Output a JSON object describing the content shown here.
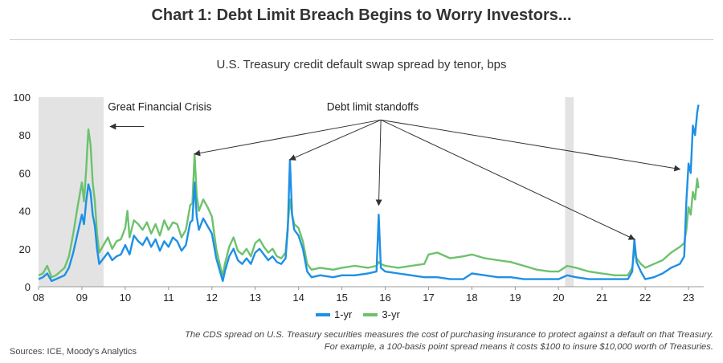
{
  "title": "Chart 1: Debt Limit Breach Begins to Worry Investors...",
  "subtitle": "U.S. Treasury credit default swap spread by tenor, bps",
  "note": "The CDS spread on U.S. Treasury securities measures the cost of purchasing insurance to protect against a default on that Treasury. For example, a 100-basis point spread means it costs $100 to insure $10,000 worth of Treasuries.",
  "source": "Sources: ICE, Moody's Analytics",
  "colors": {
    "one_yr": "#1e90e6",
    "three_yr": "#6cc26c",
    "shade": "#e3e3e3",
    "axis": "#999999"
  },
  "chart_data": {
    "type": "line",
    "xlim": [
      2008,
      2023.35
    ],
    "ylim": [
      0,
      100
    ],
    "y_ticks": [
      0,
      20,
      40,
      60,
      80,
      100
    ],
    "x_ticks": [
      {
        "x": 2008,
        "label": "08"
      },
      {
        "x": 2009,
        "label": "09"
      },
      {
        "x": 2010,
        "label": "10"
      },
      {
        "x": 2011,
        "label": "11"
      },
      {
        "x": 2012,
        "label": "12"
      },
      {
        "x": 2013,
        "label": "13"
      },
      {
        "x": 2014,
        "label": "14"
      },
      {
        "x": 2015,
        "label": "15"
      },
      {
        "x": 2016,
        "label": "16"
      },
      {
        "x": 2017,
        "label": "17"
      },
      {
        "x": 2018,
        "label": "18"
      },
      {
        "x": 2019,
        "label": "19"
      },
      {
        "x": 2020,
        "label": "20"
      },
      {
        "x": 2021,
        "label": "21"
      },
      {
        "x": 2022,
        "label": "22"
      },
      {
        "x": 2023,
        "label": "23"
      }
    ],
    "shaded_periods": [
      [
        2008,
        2009.5
      ],
      [
        2020.15,
        2020.35
      ]
    ],
    "annotations": {
      "gfc": {
        "text": "Great Financial Crisis",
        "x": 2009.6,
        "y": 93
      },
      "debt_limit": {
        "text": "Debt limit standoffs",
        "x": 2014.65,
        "y": 93,
        "anchor": [
          2015.9,
          88
        ],
        "targets": [
          [
            2011.6,
            70
          ],
          [
            2013.8,
            67
          ],
          [
            2015.85,
            43
          ],
          [
            2021.75,
            25
          ],
          [
            2022.8,
            62
          ]
        ]
      }
    },
    "series": [
      {
        "name": "1-yr",
        "color": "#1e90e6",
        "points": [
          [
            2008.0,
            4
          ],
          [
            2008.1,
            5
          ],
          [
            2008.2,
            7
          ],
          [
            2008.3,
            3
          ],
          [
            2008.4,
            4
          ],
          [
            2008.5,
            5
          ],
          [
            2008.6,
            6
          ],
          [
            2008.7,
            10
          ],
          [
            2008.8,
            18
          ],
          [
            2008.9,
            28
          ],
          [
            2009.0,
            38
          ],
          [
            2009.05,
            33
          ],
          [
            2009.1,
            45
          ],
          [
            2009.15,
            54
          ],
          [
            2009.2,
            50
          ],
          [
            2009.25,
            38
          ],
          [
            2009.3,
            32
          ],
          [
            2009.35,
            20
          ],
          [
            2009.4,
            12
          ],
          [
            2009.5,
            15
          ],
          [
            2009.6,
            18
          ],
          [
            2009.7,
            14
          ],
          [
            2009.8,
            16
          ],
          [
            2009.9,
            17
          ],
          [
            2010.0,
            22
          ],
          [
            2010.1,
            17
          ],
          [
            2010.2,
            27
          ],
          [
            2010.3,
            24
          ],
          [
            2010.4,
            22
          ],
          [
            2010.5,
            26
          ],
          [
            2010.6,
            21
          ],
          [
            2010.7,
            25
          ],
          [
            2010.8,
            19
          ],
          [
            2010.9,
            24
          ],
          [
            2011.0,
            21
          ],
          [
            2011.1,
            26
          ],
          [
            2011.2,
            24
          ],
          [
            2011.3,
            19
          ],
          [
            2011.4,
            22
          ],
          [
            2011.5,
            34
          ],
          [
            2011.55,
            35
          ],
          [
            2011.6,
            55
          ],
          [
            2011.65,
            37
          ],
          [
            2011.7,
            30
          ],
          [
            2011.8,
            36
          ],
          [
            2011.9,
            32
          ],
          [
            2012.0,
            28
          ],
          [
            2012.1,
            15
          ],
          [
            2012.2,
            7
          ],
          [
            2012.25,
            3
          ],
          [
            2012.3,
            8
          ],
          [
            2012.4,
            16
          ],
          [
            2012.5,
            20
          ],
          [
            2012.6,
            14
          ],
          [
            2012.7,
            12
          ],
          [
            2012.8,
            15
          ],
          [
            2012.9,
            12
          ],
          [
            2013.0,
            18
          ],
          [
            2013.1,
            20
          ],
          [
            2013.2,
            17
          ],
          [
            2013.3,
            14
          ],
          [
            2013.4,
            16
          ],
          [
            2013.5,
            13
          ],
          [
            2013.6,
            12
          ],
          [
            2013.7,
            15
          ],
          [
            2013.75,
            30
          ],
          [
            2013.8,
            67
          ],
          [
            2013.85,
            38
          ],
          [
            2013.9,
            30
          ],
          [
            2014.0,
            27
          ],
          [
            2014.1,
            20
          ],
          [
            2014.2,
            8
          ],
          [
            2014.3,
            5
          ],
          [
            2014.5,
            6
          ],
          [
            2014.8,
            5
          ],
          [
            2015.0,
            6
          ],
          [
            2015.3,
            6
          ],
          [
            2015.6,
            7
          ],
          [
            2015.8,
            8
          ],
          [
            2015.85,
            38
          ],
          [
            2015.9,
            10
          ],
          [
            2016.0,
            8
          ],
          [
            2016.3,
            7
          ],
          [
            2016.6,
            6
          ],
          [
            2016.9,
            5
          ],
          [
            2017.2,
            5
          ],
          [
            2017.5,
            4
          ],
          [
            2017.8,
            4
          ],
          [
            2018.0,
            7
          ],
          [
            2018.3,
            6
          ],
          [
            2018.6,
            5
          ],
          [
            2018.9,
            5
          ],
          [
            2019.2,
            4
          ],
          [
            2019.5,
            4
          ],
          [
            2019.8,
            4
          ],
          [
            2020.0,
            4
          ],
          [
            2020.2,
            6
          ],
          [
            2020.4,
            5
          ],
          [
            2020.7,
            4
          ],
          [
            2021.0,
            4
          ],
          [
            2021.3,
            4
          ],
          [
            2021.6,
            4
          ],
          [
            2021.7,
            8
          ],
          [
            2021.75,
            25
          ],
          [
            2021.8,
            13
          ],
          [
            2021.9,
            8
          ],
          [
            2022.0,
            4
          ],
          [
            2022.2,
            5
          ],
          [
            2022.4,
            7
          ],
          [
            2022.6,
            10
          ],
          [
            2022.8,
            12
          ],
          [
            2022.9,
            16
          ],
          [
            2022.95,
            45
          ],
          [
            2023.0,
            65
          ],
          [
            2023.05,
            60
          ],
          [
            2023.1,
            85
          ],
          [
            2023.15,
            80
          ],
          [
            2023.2,
            92
          ],
          [
            2023.23,
            96
          ]
        ]
      },
      {
        "name": "3-yr",
        "color": "#6cc26c",
        "points": [
          [
            2008.0,
            6
          ],
          [
            2008.1,
            7
          ],
          [
            2008.2,
            11
          ],
          [
            2008.3,
            5
          ],
          [
            2008.4,
            6
          ],
          [
            2008.5,
            8
          ],
          [
            2008.6,
            10
          ],
          [
            2008.7,
            16
          ],
          [
            2008.8,
            28
          ],
          [
            2008.9,
            42
          ],
          [
            2009.0,
            55
          ],
          [
            2009.05,
            45
          ],
          [
            2009.1,
            62
          ],
          [
            2009.15,
            83
          ],
          [
            2009.2,
            75
          ],
          [
            2009.25,
            55
          ],
          [
            2009.3,
            45
          ],
          [
            2009.35,
            28
          ],
          [
            2009.4,
            18
          ],
          [
            2009.5,
            22
          ],
          [
            2009.6,
            26
          ],
          [
            2009.7,
            20
          ],
          [
            2009.8,
            24
          ],
          [
            2009.9,
            25
          ],
          [
            2010.0,
            31
          ],
          [
            2010.05,
            40
          ],
          [
            2010.1,
            26
          ],
          [
            2010.2,
            35
          ],
          [
            2010.3,
            33
          ],
          [
            2010.4,
            30
          ],
          [
            2010.5,
            34
          ],
          [
            2010.6,
            28
          ],
          [
            2010.7,
            33
          ],
          [
            2010.8,
            27
          ],
          [
            2010.9,
            35
          ],
          [
            2011.0,
            30
          ],
          [
            2011.1,
            34
          ],
          [
            2011.2,
            33
          ],
          [
            2011.3,
            26
          ],
          [
            2011.4,
            30
          ],
          [
            2011.5,
            43
          ],
          [
            2011.55,
            44
          ],
          [
            2011.6,
            70
          ],
          [
            2011.65,
            48
          ],
          [
            2011.7,
            40
          ],
          [
            2011.8,
            46
          ],
          [
            2011.9,
            42
          ],
          [
            2012.0,
            37
          ],
          [
            2012.1,
            20
          ],
          [
            2012.2,
            10
          ],
          [
            2012.25,
            6
          ],
          [
            2012.3,
            12
          ],
          [
            2012.4,
            21
          ],
          [
            2012.5,
            26
          ],
          [
            2012.6,
            19
          ],
          [
            2012.7,
            17
          ],
          [
            2012.8,
            20
          ],
          [
            2012.9,
            16
          ],
          [
            2013.0,
            23
          ],
          [
            2013.1,
            25
          ],
          [
            2013.2,
            21
          ],
          [
            2013.3,
            18
          ],
          [
            2013.4,
            20
          ],
          [
            2013.5,
            16
          ],
          [
            2013.6,
            15
          ],
          [
            2013.7,
            18
          ],
          [
            2013.75,
            32
          ],
          [
            2013.8,
            46
          ],
          [
            2013.85,
            38
          ],
          [
            2013.9,
            33
          ],
          [
            2014.0,
            31
          ],
          [
            2014.1,
            24
          ],
          [
            2014.2,
            12
          ],
          [
            2014.3,
            9
          ],
          [
            2014.5,
            10
          ],
          [
            2014.8,
            9
          ],
          [
            2015.0,
            10
          ],
          [
            2015.3,
            11
          ],
          [
            2015.6,
            10
          ],
          [
            2015.8,
            11
          ],
          [
            2015.85,
            13
          ],
          [
            2015.9,
            12
          ],
          [
            2016.0,
            11
          ],
          [
            2016.3,
            10
          ],
          [
            2016.6,
            11
          ],
          [
            2016.9,
            12
          ],
          [
            2017.0,
            17
          ],
          [
            2017.2,
            18
          ],
          [
            2017.5,
            15
          ],
          [
            2017.8,
            16
          ],
          [
            2018.0,
            17
          ],
          [
            2018.3,
            15
          ],
          [
            2018.6,
            14
          ],
          [
            2018.9,
            13
          ],
          [
            2019.2,
            11
          ],
          [
            2019.5,
            9
          ],
          [
            2019.8,
            8
          ],
          [
            2020.0,
            8
          ],
          [
            2020.2,
            11
          ],
          [
            2020.4,
            10
          ],
          [
            2020.7,
            8
          ],
          [
            2021.0,
            7
          ],
          [
            2021.3,
            6
          ],
          [
            2021.6,
            6
          ],
          [
            2021.7,
            10
          ],
          [
            2021.75,
            19
          ],
          [
            2021.8,
            15
          ],
          [
            2021.9,
            12
          ],
          [
            2022.0,
            10
          ],
          [
            2022.2,
            12
          ],
          [
            2022.4,
            14
          ],
          [
            2022.6,
            18
          ],
          [
            2022.8,
            21
          ],
          [
            2022.9,
            23
          ],
          [
            2022.95,
            30
          ],
          [
            2023.0,
            42
          ],
          [
            2023.05,
            38
          ],
          [
            2023.1,
            50
          ],
          [
            2023.15,
            46
          ],
          [
            2023.2,
            57
          ],
          [
            2023.23,
            52
          ]
        ]
      }
    ]
  }
}
